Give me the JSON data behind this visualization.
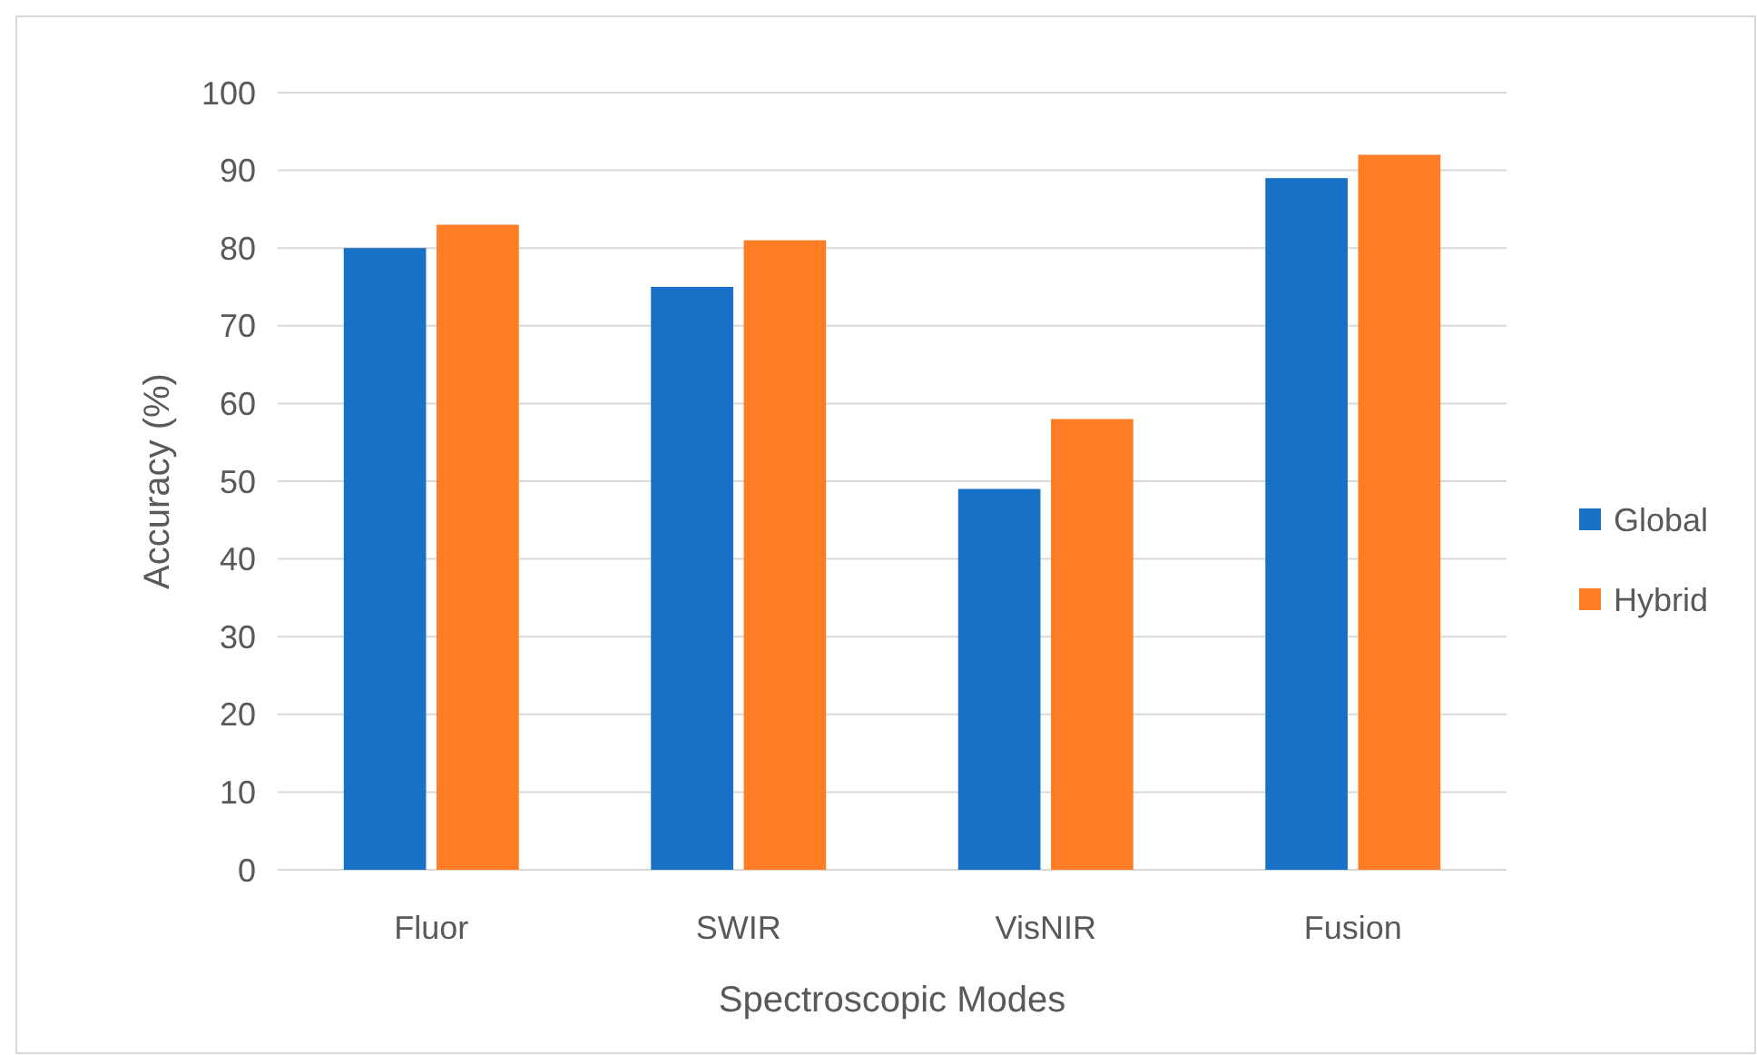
{
  "chart_data": {
    "type": "bar",
    "xlabel": "Spectroscopic Modes",
    "ylabel": "Accuracy (%)",
    "categories": [
      "Fluor",
      "SWIR",
      "VisNIR",
      "Fusion"
    ],
    "series": [
      {
        "name": "Global",
        "color": "#1772c7",
        "values": [
          80,
          75,
          49,
          89
        ]
      },
      {
        "name": "Hybrid",
        "color": "#fe7d25",
        "values": [
          83,
          81,
          58,
          92
        ]
      }
    ],
    "ylim": [
      0,
      100
    ],
    "yticks": [
      0,
      10,
      20,
      30,
      40,
      50,
      60,
      70,
      80,
      90,
      100
    ],
    "grid": "y",
    "legend": "right"
  }
}
